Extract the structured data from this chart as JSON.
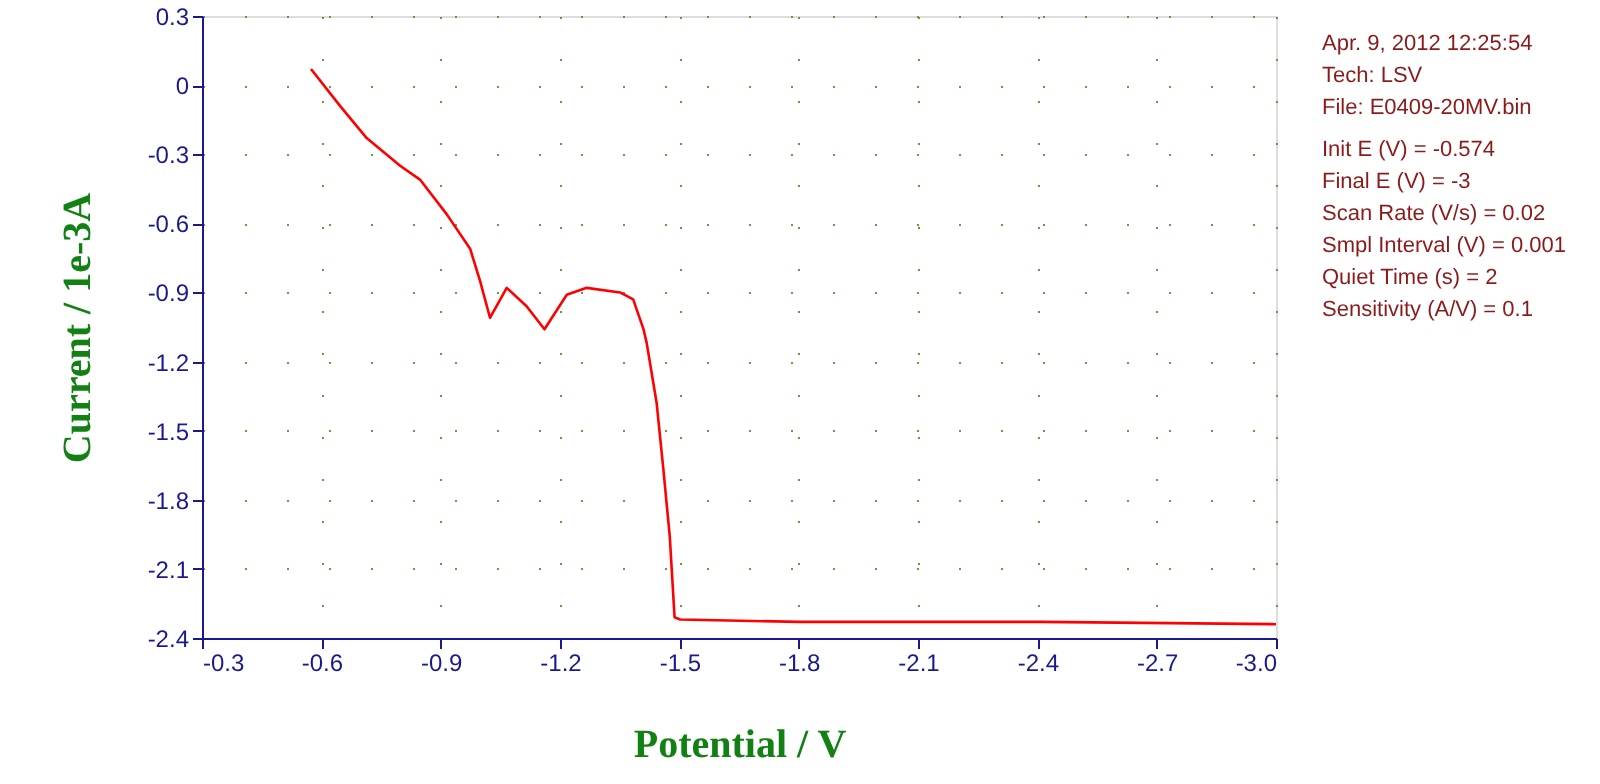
{
  "chart_data": {
    "type": "line",
    "xlabel": "Potential / V",
    "ylabel": "Current / 1e-3A",
    "x": [
      -0.574,
      -0.647,
      -0.714,
      -0.798,
      -0.848,
      -0.915,
      -0.974,
      -0.999,
      -1.024,
      -1.066,
      -1.116,
      -1.161,
      -1.217,
      -1.267,
      -1.351,
      -1.384,
      -1.41,
      -1.418,
      -1.443,
      -1.46,
      -1.476,
      -1.488,
      -1.502,
      -1.803,
      -2.105,
      -2.41,
      -3.0
    ],
    "series": [
      {
        "color": "#ff0000",
        "values": [
          0.07,
          -0.09,
          -0.23,
          -0.35,
          -0.41,
          -0.56,
          -0.71,
          -0.85,
          -1.01,
          -0.88,
          -0.96,
          -1.06,
          -0.91,
          -0.88,
          -0.9,
          -0.93,
          -1.06,
          -1.12,
          -1.38,
          -1.67,
          -1.96,
          -2.31,
          -2.32,
          -2.33,
          -2.33,
          -2.33,
          -2.34
        ]
      }
    ],
    "xlim": [
      -0.3,
      -3.0
    ],
    "xticks": [
      -0.3,
      -0.6,
      -0.9,
      -1.2,
      -1.5,
      -1.8,
      -2.1,
      -2.4,
      -2.7,
      {
        "value": -3.0,
        "label": "-3.0"
      }
    ],
    "ylim": [
      -2.4,
      0.3
    ],
    "yticks": [
      0.3,
      0,
      -0.3,
      -0.6,
      -0.9,
      -1.2,
      -1.5,
      -1.8,
      -2.1,
      -2.4
    ],
    "grid": true,
    "marker": "none",
    "line_style": "solid",
    "annotations": [
      "Apr. 9, 2012   12:25:54",
      "Tech: LSV",
      "File: E0409-20MV.bin",
      "Init E (V) = -0.574",
      "Final E (V) = -3",
      "Scan Rate (V/s) = 0.02",
      "Smpl Interval (V) = 0.001",
      "Quiet Time (s) = 2",
      "Sensitivity (A/V) = 0.1"
    ]
  }
}
